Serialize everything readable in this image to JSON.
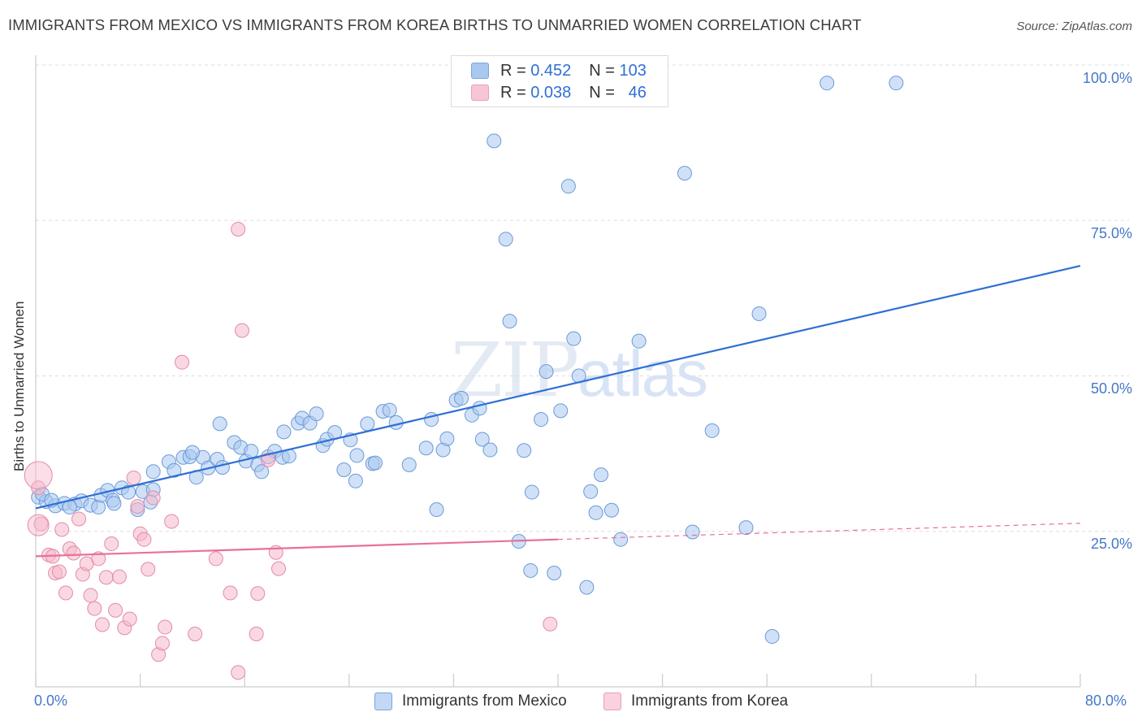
{
  "title": "IMMIGRANTS FROM MEXICO VS IMMIGRANTS FROM KOREA BIRTHS TO UNMARRIED WOMEN CORRELATION CHART",
  "source": "Source: ZipAtlas.com",
  "watermark": {
    "zip": "ZIP",
    "atlas": "atlas"
  },
  "legend": {
    "r_label": "R =",
    "n_label": "N =",
    "rows": [
      {
        "r": "0.452",
        "n": "103",
        "color": "#a9c8f0"
      },
      {
        "r": "0.038",
        "n": "46",
        "color": "#f6b8cb"
      }
    ]
  },
  "chart_data": {
    "type": "scatter",
    "title": "IMMIGRANTS FROM MEXICO VS IMMIGRANTS FROM KOREA BIRTHS TO UNMARRIED WOMEN CORRELATION CHART",
    "xlabel": "",
    "ylabel": "Births to Unmarried Women",
    "xlim": [
      0,
      80
    ],
    "ylim": [
      0,
      100
    ],
    "x_tick_labels": [
      "0.0%",
      "80.0%"
    ],
    "y_tick_labels": [
      "25.0%",
      "50.0%",
      "75.0%",
      "100.0%"
    ],
    "y_ticks": [
      25,
      50,
      75,
      100
    ],
    "grid": true,
    "legend_position": "top-center",
    "series": [
      {
        "name": "Immigrants from Mexico",
        "color": "#a9c8f0",
        "stroke": "#6a9ad8",
        "trend": {
          "x": [
            0,
            80
          ],
          "y": [
            28.7,
            67.7
          ],
          "color": "#2f6fd6"
        },
        "points": [
          [
            0.2,
            30.5
          ],
          [
            0.8,
            29.8
          ],
          [
            1.5,
            29.1
          ],
          [
            2.2,
            29.5
          ],
          [
            3.0,
            29.4
          ],
          [
            3.5,
            29.9
          ],
          [
            4.2,
            29.2
          ],
          [
            4.8,
            28.9
          ],
          [
            5.0,
            30.8
          ],
          [
            5.5,
            31.6
          ],
          [
            5.9,
            30.0
          ],
          [
            6.6,
            32.0
          ],
          [
            7.1,
            31.3
          ],
          [
            7.8,
            28.5
          ],
          [
            8.2,
            31.4
          ],
          [
            9.0,
            31.7
          ],
          [
            9.0,
            34.6
          ],
          [
            10.2,
            36.2
          ],
          [
            10.6,
            34.8
          ],
          [
            11.3,
            36.9
          ],
          [
            11.8,
            37.0
          ],
          [
            12.3,
            33.7
          ],
          [
            12.8,
            36.9
          ],
          [
            13.2,
            35.2
          ],
          [
            13.9,
            36.6
          ],
          [
            14.3,
            35.3
          ],
          [
            14.1,
            42.3
          ],
          [
            15.2,
            39.3
          ],
          [
            15.7,
            38.5
          ],
          [
            16.1,
            36.3
          ],
          [
            16.5,
            37.9
          ],
          [
            17.0,
            35.7
          ],
          [
            17.3,
            34.6
          ],
          [
            17.8,
            37.0
          ],
          [
            18.3,
            37.9
          ],
          [
            18.9,
            36.9
          ],
          [
            19.4,
            37.1
          ],
          [
            20.1,
            42.4
          ],
          [
            20.4,
            43.2
          ],
          [
            21.0,
            42.4
          ],
          [
            21.5,
            43.9
          ],
          [
            22.0,
            38.8
          ],
          [
            22.3,
            39.8
          ],
          [
            22.9,
            40.9
          ],
          [
            23.6,
            34.9
          ],
          [
            24.1,
            39.7
          ],
          [
            24.5,
            33.1
          ],
          [
            24.6,
            37.2
          ],
          [
            25.4,
            42.3
          ],
          [
            25.8,
            35.9
          ],
          [
            26.6,
            44.3
          ],
          [
            27.1,
            44.5
          ],
          [
            27.6,
            42.5
          ],
          [
            28.6,
            35.7
          ],
          [
            29.9,
            38.4
          ],
          [
            30.3,
            43.0
          ],
          [
            30.7,
            28.5
          ],
          [
            31.2,
            38.1
          ],
          [
            31.5,
            39.9
          ],
          [
            32.2,
            46.1
          ],
          [
            32.6,
            46.4
          ],
          [
            33.4,
            43.7
          ],
          [
            34.0,
            44.8
          ],
          [
            34.2,
            39.8
          ],
          [
            34.8,
            38.1
          ],
          [
            35.1,
            87.8
          ],
          [
            36.0,
            72.0
          ],
          [
            36.3,
            58.8
          ],
          [
            37.0,
            23.4
          ],
          [
            37.4,
            38.0
          ],
          [
            38.0,
            31.3
          ],
          [
            37.9,
            18.7
          ],
          [
            38.7,
            43.0
          ],
          [
            39.1,
            50.7
          ],
          [
            39.7,
            18.3
          ],
          [
            40.2,
            44.4
          ],
          [
            40.8,
            80.5
          ],
          [
            41.2,
            56.0
          ],
          [
            41.6,
            50.0
          ],
          [
            42.2,
            16.0
          ],
          [
            42.5,
            31.4
          ],
          [
            42.9,
            28.0
          ],
          [
            43.3,
            34.1
          ],
          [
            44.1,
            28.4
          ],
          [
            44.8,
            23.7
          ],
          [
            46.2,
            55.6
          ],
          [
            47.7,
            97.1
          ],
          [
            49.7,
            82.6
          ],
          [
            50.3,
            24.9
          ],
          [
            51.8,
            41.2
          ],
          [
            54.4,
            25.6
          ],
          [
            55.4,
            60.0
          ],
          [
            56.4,
            8.1
          ],
          [
            60.6,
            97.1
          ],
          [
            65.9,
            97.1
          ],
          [
            0.5,
            31.0
          ],
          [
            1.2,
            30.0
          ],
          [
            2.6,
            28.9
          ],
          [
            6.0,
            29.5
          ],
          [
            8.8,
            29.7
          ],
          [
            12.0,
            37.7
          ],
          [
            19.0,
            41.0
          ],
          [
            26.0,
            36.0
          ]
        ]
      },
      {
        "name": "Immigrants from Korea",
        "color": "#f6b8cb",
        "stroke": "#e48aa8",
        "trend": {
          "x": [
            0,
            40
          ],
          "y": [
            21.0,
            23.7
          ],
          "color": "#e8709a",
          "dashed_extension_to": [
            80,
            26.3
          ]
        },
        "points": [
          [
            0.2,
            32.0
          ],
          [
            0.4,
            26.2
          ],
          [
            1.0,
            21.2
          ],
          [
            1.3,
            21.0
          ],
          [
            1.5,
            18.3
          ],
          [
            1.8,
            18.5
          ],
          [
            2.0,
            25.3
          ],
          [
            2.3,
            15.1
          ],
          [
            2.6,
            22.2
          ],
          [
            2.9,
            21.5
          ],
          [
            3.3,
            27.0
          ],
          [
            3.6,
            18.1
          ],
          [
            3.9,
            19.8
          ],
          [
            4.2,
            14.7
          ],
          [
            4.5,
            12.6
          ],
          [
            4.8,
            20.6
          ],
          [
            5.1,
            10.0
          ],
          [
            5.4,
            17.6
          ],
          [
            5.8,
            23.0
          ],
          [
            6.1,
            12.3
          ],
          [
            6.4,
            17.7
          ],
          [
            6.8,
            9.5
          ],
          [
            7.2,
            10.9
          ],
          [
            7.5,
            33.6
          ],
          [
            7.8,
            29.0
          ],
          [
            8.0,
            24.6
          ],
          [
            8.3,
            23.7
          ],
          [
            8.6,
            18.9
          ],
          [
            9.0,
            30.4
          ],
          [
            9.4,
            5.2
          ],
          [
            9.7,
            7.0
          ],
          [
            9.9,
            9.6
          ],
          [
            10.4,
            26.6
          ],
          [
            11.2,
            52.2
          ],
          [
            12.2,
            8.5
          ],
          [
            13.8,
            20.6
          ],
          [
            14.9,
            15.1
          ],
          [
            15.5,
            2.3
          ],
          [
            15.5,
            73.6
          ],
          [
            15.8,
            57.3
          ],
          [
            16.9,
            8.5
          ],
          [
            17.0,
            15.0
          ],
          [
            17.8,
            36.5
          ],
          [
            18.4,
            21.6
          ],
          [
            18.6,
            19.0
          ],
          [
            39.4,
            10.1
          ]
        ]
      }
    ]
  },
  "bottom_legend": [
    "Immigrants from Mexico",
    "Immigrants from Korea"
  ]
}
